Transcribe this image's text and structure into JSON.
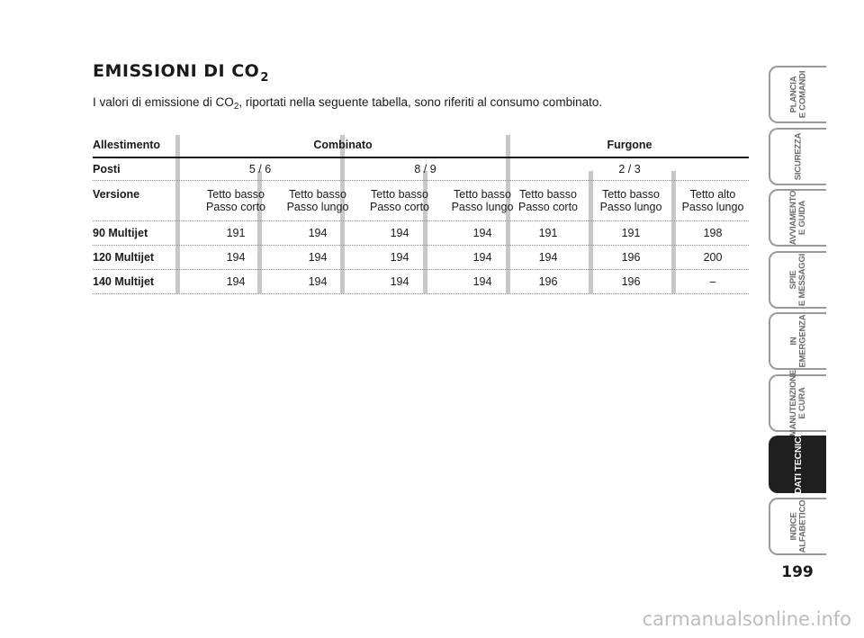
{
  "heading": {
    "text": "EMISSIONI DI CO",
    "sub": "2"
  },
  "intro": {
    "before": "I valori di emissione di CO",
    "sub": "2",
    "after": ", riportati nella seguente tabella, sono riferiti al consumo combinato."
  },
  "table": {
    "header": {
      "label": "Allestimento",
      "group1": "Combinato",
      "group2": "Furgone"
    },
    "posti": {
      "label": "Posti",
      "values": [
        "5 / 6",
        "8 / 9",
        "2 / 3"
      ]
    },
    "versione": {
      "label": "Versione",
      "columns": [
        [
          "Tetto basso",
          "Passo corto"
        ],
        [
          "Tetto basso",
          "Passo lungo"
        ],
        [
          "Tetto basso",
          "Passo corto"
        ],
        [
          "Tetto basso",
          "Passo lungo"
        ],
        [
          "Tetto basso",
          "Passo corto"
        ],
        [
          "Tetto basso",
          "Passo lungo"
        ],
        [
          "Tetto alto",
          "Passo lungo"
        ]
      ]
    },
    "rows": [
      {
        "label": "90 Multijet",
        "values": [
          "191",
          "194",
          "194",
          "194",
          "191",
          "191",
          "198"
        ]
      },
      {
        "label": "120 Multijet",
        "values": [
          "194",
          "194",
          "194",
          "194",
          "194",
          "196",
          "200"
        ]
      },
      {
        "label": "140 Multijet",
        "values": [
          "194",
          "194",
          "194",
          "194",
          "196",
          "196",
          "–"
        ]
      }
    ]
  },
  "tabs": [
    {
      "lines": [
        "PLANCIA",
        "E COMANDI"
      ],
      "active": false
    },
    {
      "lines": [
        "SICUREZZA"
      ],
      "active": false
    },
    {
      "lines": [
        "AVVIAMENTO",
        "E GUIDA"
      ],
      "active": false
    },
    {
      "lines": [
        "SPIE",
        "E MESSAGGI"
      ],
      "active": false
    },
    {
      "lines": [
        "IN",
        "EMERGENZA"
      ],
      "active": false
    },
    {
      "lines": [
        "MANUTENZIONE",
        "E CURA"
      ],
      "active": false
    },
    {
      "lines": [
        "DATI TECNICI"
      ],
      "active": true
    },
    {
      "lines": [
        "INDICE",
        "ALFABETICO"
      ],
      "active": false
    }
  ],
  "page_number": "199",
  "watermark": "carmanualsonline.info"
}
